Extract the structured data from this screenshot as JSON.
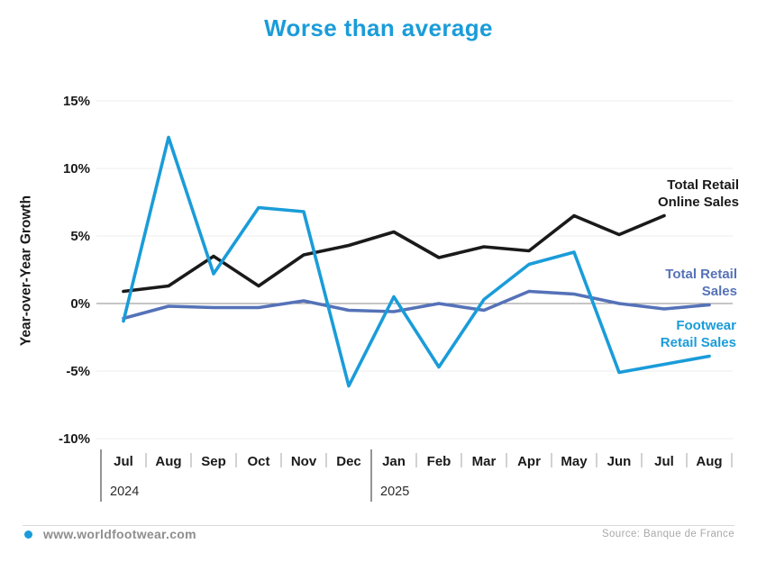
{
  "title": "Worse than average",
  "y_axis_title": "Year-over-Year Growth",
  "colors": {
    "title_accent": "#1a9cd9",
    "online_series": "#1a1a1a",
    "retail_series": "#5572b8",
    "footwear_series": "#1a9cd9",
    "zero_line": "#8c8c8c",
    "grid_line": "#ececec"
  },
  "chart_data": {
    "type": "line",
    "title": "Worse than average",
    "ylabel": "Year-over-Year Growth",
    "ylim": [
      -10,
      15
    ],
    "y_ticks": [
      15,
      10,
      5,
      0,
      -5,
      -10
    ],
    "y_tick_suffix": "%",
    "grid": "horizontal-faint",
    "legend_position": "right-of-lines",
    "x_labels": [
      "Jul",
      "Aug",
      "Sep",
      "Oct",
      "Nov",
      "Dec",
      "Jan",
      "Feb",
      "Mar",
      "Apr",
      "May",
      "Jun",
      "Jul",
      "Aug"
    ],
    "year_groups": [
      {
        "label": "2024",
        "start_index": 0
      },
      {
        "label": "2025",
        "start_index": 6
      }
    ],
    "series": [
      {
        "name": "Total Retail Online Sales",
        "color": "#1a1a1a",
        "values": [
          0.9,
          1.3,
          3.5,
          1.3,
          3.6,
          4.3,
          5.3,
          3.4,
          4.2,
          3.9,
          6.5,
          5.1,
          6.5,
          null
        ]
      },
      {
        "name": "Total Retail Sales",
        "color": "#5572b8",
        "values": [
          -1.1,
          -0.2,
          -0.3,
          -0.3,
          0.2,
          -0.5,
          -0.6,
          0.0,
          -0.5,
          0.9,
          0.7,
          0.0,
          -0.4,
          -0.1
        ]
      },
      {
        "name": "Footwear Retail Sales",
        "color": "#1a9cd9",
        "values": [
          -1.3,
          12.3,
          2.2,
          7.1,
          6.8,
          -6.1,
          0.5,
          -4.7,
          0.3,
          2.9,
          3.8,
          -5.1,
          -4.5,
          -3.9
        ]
      }
    ]
  },
  "footer": {
    "website": "www.worldfootwear.com",
    "source": "Source: Banque de France",
    "bullet_color": "#1a9cd9"
  }
}
